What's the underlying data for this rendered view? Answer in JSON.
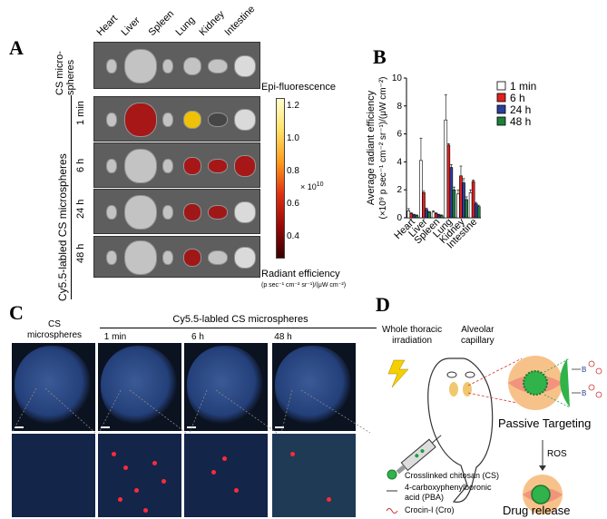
{
  "panels": {
    "a": "A",
    "b": "B",
    "c": "C",
    "d": "D"
  },
  "panel_a": {
    "organs": [
      "Heart",
      "Liver",
      "Spleen",
      "Lung",
      "Kidney",
      "Intestine"
    ],
    "group_cs": "CS micro-\nspheres",
    "group_cy": "Cy5.5-labled CS microspheres",
    "rows": [
      "1 min",
      "6 h",
      "24 h",
      "48 h"
    ],
    "colorbar_title": "Epi-fluorescence",
    "colorbar_ticks": [
      "1.2",
      "1.0",
      "0.8",
      "0.6",
      "0.4"
    ],
    "colorbar_exp": "× 10",
    "colorbar_exp_sup": "10",
    "radiant_title": "Radiant efficiency",
    "radiant_units": "(p sec⁻¹ cm⁻² sr⁻¹)/(μW cm⁻²)"
  },
  "chart_data": {
    "type": "bar",
    "categories": [
      "Heart",
      "Liver",
      "Spleen",
      "Lung",
      "Kidney",
      "Intestine"
    ],
    "series": [
      {
        "name": "1 min",
        "values": [
          0.5,
          4.1,
          0.4,
          7.0,
          1.7,
          1.8
        ],
        "errors": [
          0.15,
          1.6,
          0.1,
          1.8,
          0.3,
          0.2
        ],
        "color": "#ffffff"
      },
      {
        "name": "6 h",
        "values": [
          0.3,
          1.8,
          0.3,
          5.2,
          3.0,
          2.6
        ],
        "errors": [
          0.05,
          0.1,
          0.05,
          0.1,
          0.7,
          0.1
        ],
        "color": "#e02020"
      },
      {
        "name": "24 h",
        "values": [
          0.2,
          0.6,
          0.2,
          3.6,
          2.5,
          1.0
        ],
        "errors": [
          0.05,
          0.1,
          0.05,
          0.2,
          0.3,
          0.1
        ],
        "color": "#2a3f9a"
      },
      {
        "name": "48 h",
        "values": [
          0.15,
          0.4,
          0.15,
          2.0,
          1.3,
          0.8
        ],
        "errors": [
          0.05,
          0.05,
          0.05,
          0.2,
          0.2,
          0.1
        ],
        "color": "#1e7f3a"
      }
    ],
    "ylabel_line1": "Average radiant efficiency",
    "ylabel_line2": "(×10⁹ p sec⁻¹ cm⁻² sr⁻¹)/(μW cm⁻²)",
    "yticks": [
      "0",
      "2",
      "4",
      "6",
      "8",
      "10"
    ],
    "ylim": [
      0,
      10
    ],
    "legend_position": "top-right"
  },
  "panel_c": {
    "col_cs": "CS\nmicrospheres",
    "group_cy": "Cy5.5-labled CS microspheres",
    "cols": [
      "1 min",
      "6 h",
      "48 h"
    ]
  },
  "panel_d": {
    "whole_thoracic": "Whole thoracic\nirradiation",
    "alveolar": "Alveolar\ncapillary",
    "passive": "Passive Targeting",
    "ros": "ROS",
    "drug_release": "Drug release",
    "legend_cs": "Crosslinked chitosan (CS)",
    "legend_pba": "4-carboxyphenylboronic\nacid (PBA)",
    "legend_cro": "Crocin-I (Cro)",
    "boron": "B"
  },
  "colors": {
    "red": "#d01818",
    "blue_bar": "#2a3f9a",
    "green_bar": "#1e7f3a"
  }
}
